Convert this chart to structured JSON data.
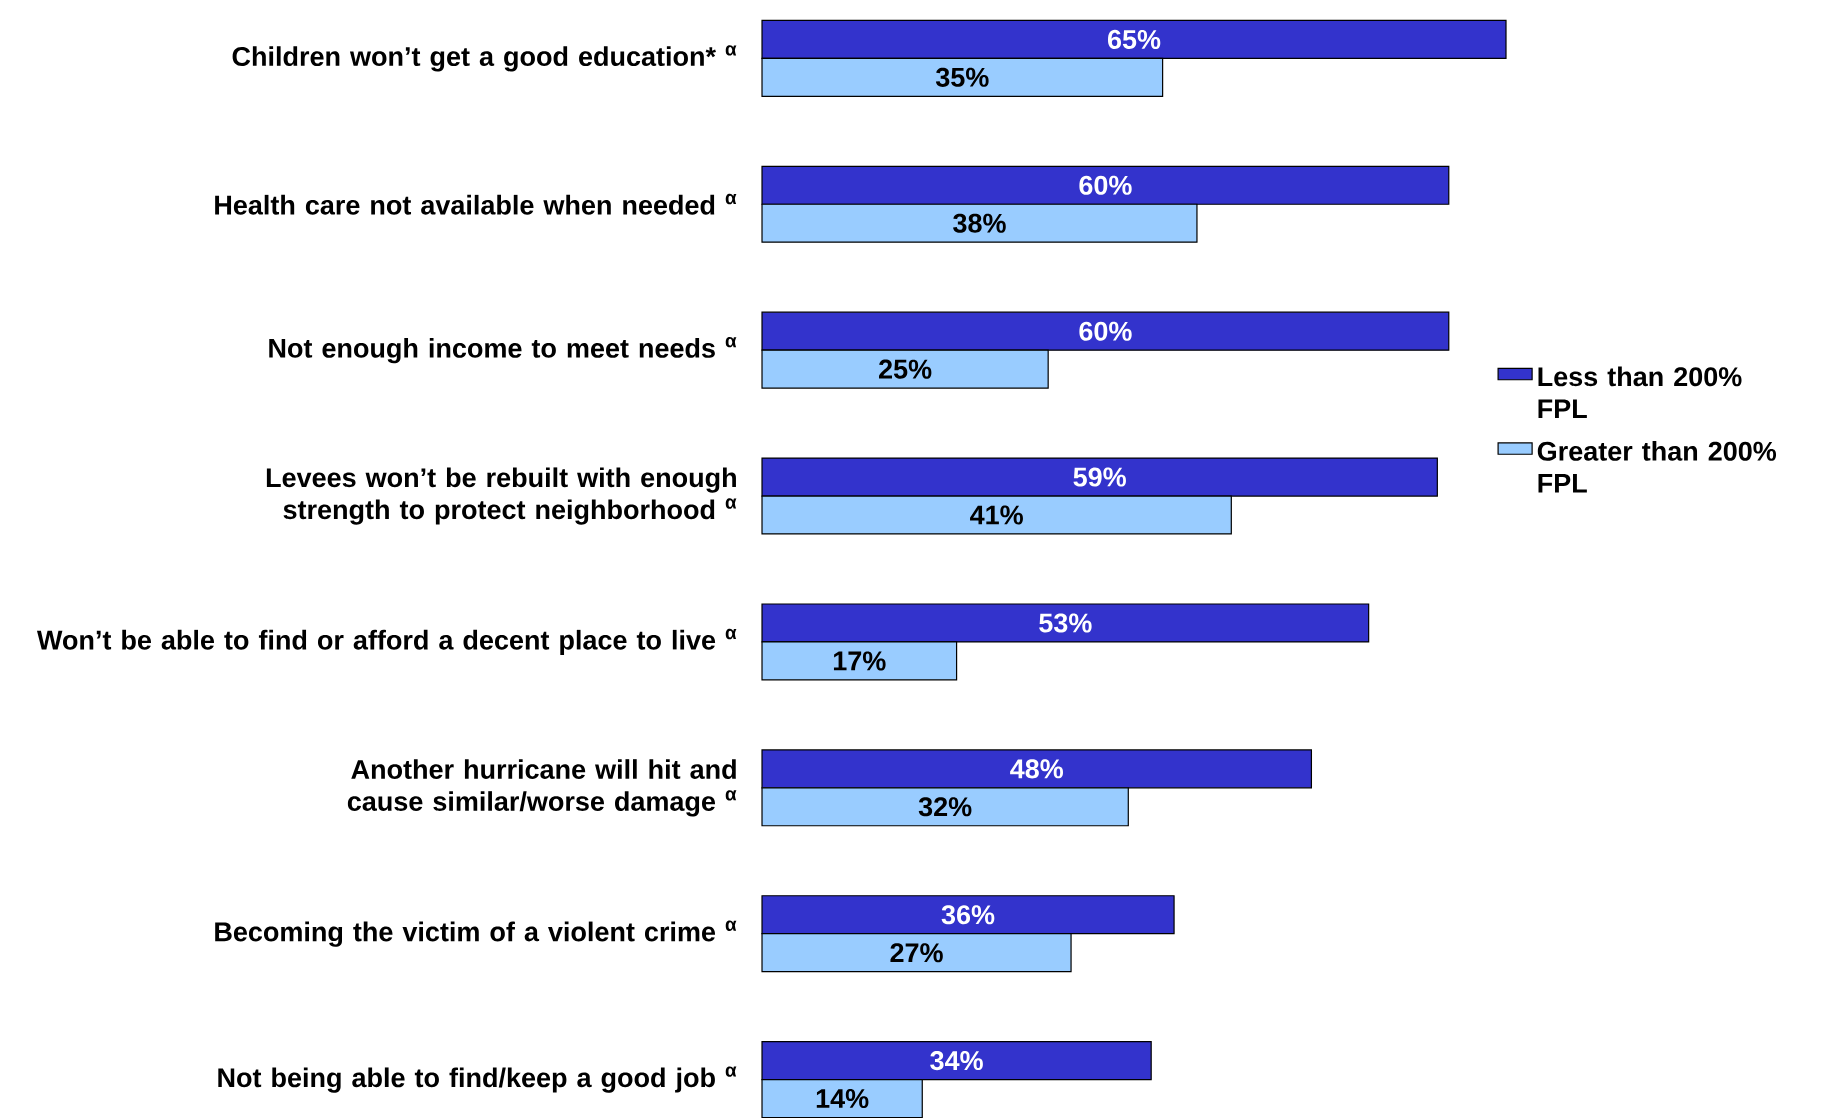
{
  "chart_data": {
    "type": "bar",
    "orientation": "horizontal",
    "categories": [
      "Children won’t get a good education* $^{α}$",
      "Health care not available when needed $^{α}$",
      "Not enough income to meet needs $^{α}$",
      "Levees won’t be rebuilt with enough strength to protect neighborhood $^{α}$",
      "Won’t be able to find or afford a decent place to live $^{α}$",
      "Another hurricane will hit and cause similar/worse damage $^{α}$",
      "Becoming the victim of a violent crime $^{α}$",
      "Not being able to find/keep a good job $^{α}$"
    ],
    "series": [
      {
        "name": "Less than 200% FPL",
        "color": "#3333cc",
        "values": [
          65,
          60,
          60,
          59,
          53,
          48,
          36,
          34
        ],
        "value_labels": [
          "65%",
          "60%",
          "60%",
          "59%",
          "53%",
          "48%",
          "36%",
          "34%"
        ]
      },
      {
        "name": "Greater than 200% FPL",
        "color": "#99ccff",
        "values": [
          35,
          38,
          25,
          41,
          17,
          32,
          27,
          14
        ],
        "value_labels": [
          "35%",
          "38%",
          "25%",
          "41%",
          "17%",
          "32%",
          "27%",
          "14%"
        ]
      }
    ],
    "legend": "right",
    "tick_labels": "y"
  }
}
